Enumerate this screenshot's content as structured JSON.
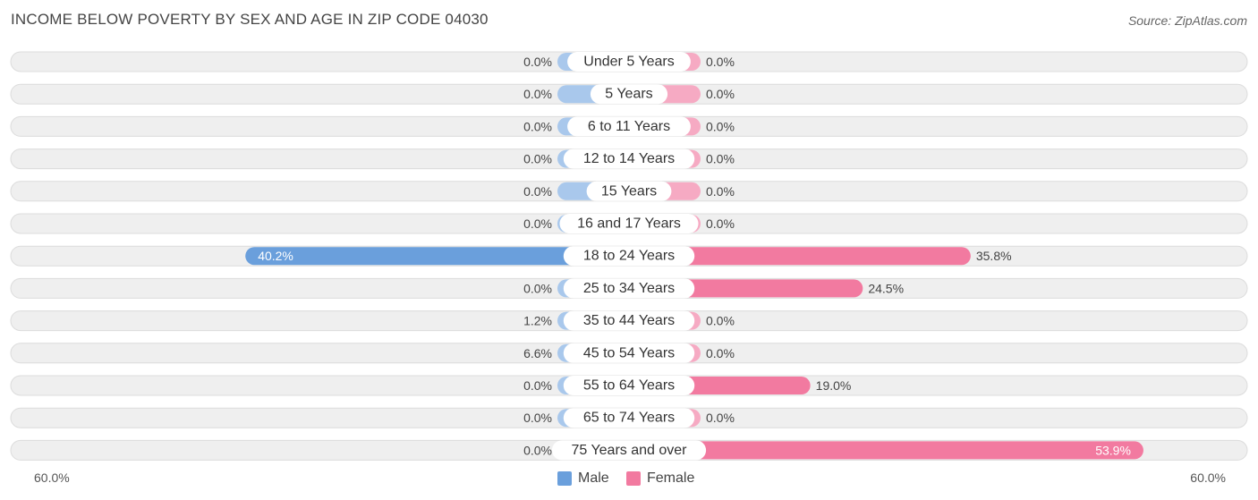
{
  "title": "INCOME BELOW POVERTY BY SEX AND AGE IN ZIP CODE 04030",
  "source": "Source: ZipAtlas.com",
  "colors": {
    "male": "#6a9fdc",
    "male_light": "#a9c8ec",
    "female": "#f27aa0",
    "female_light": "#f6aac3",
    "row_bg": "#efefef"
  },
  "chart_data": {
    "type": "bar",
    "orientation": "horizontal-diverging",
    "categories": [
      "Under 5 Years",
      "5 Years",
      "6 to 11 Years",
      "12 to 14 Years",
      "15 Years",
      "16 and 17 Years",
      "18 to 24 Years",
      "25 to 34 Years",
      "35 to 44 Years",
      "45 to 54 Years",
      "55 to 64 Years",
      "65 to 74 Years",
      "75 Years and over"
    ],
    "series": [
      {
        "name": "Male",
        "values": [
          0.0,
          0.0,
          0.0,
          0.0,
          0.0,
          0.0,
          40.2,
          0.0,
          1.2,
          6.6,
          0.0,
          0.0,
          0.0
        ]
      },
      {
        "name": "Female",
        "values": [
          0.0,
          0.0,
          0.0,
          0.0,
          0.0,
          0.0,
          35.8,
          24.5,
          0.0,
          0.0,
          19.0,
          0.0,
          53.9
        ]
      }
    ],
    "value_labels": {
      "male": [
        "0.0%",
        "0.0%",
        "0.0%",
        "0.0%",
        "0.0%",
        "0.0%",
        "40.2%",
        "0.0%",
        "1.2%",
        "6.6%",
        "0.0%",
        "0.0%",
        "0.0%"
      ],
      "female": [
        "0.0%",
        "0.0%",
        "0.0%",
        "0.0%",
        "0.0%",
        "0.0%",
        "35.8%",
        "24.5%",
        "0.0%",
        "0.0%",
        "19.0%",
        "0.0%",
        "53.9%"
      ]
    },
    "xlim": [
      -60,
      60
    ],
    "axis_left_label": "60.0%",
    "axis_right_label": "60.0%",
    "legend": [
      {
        "name": "Male",
        "color": "#6a9fdc"
      },
      {
        "name": "Female",
        "color": "#f27aa0"
      }
    ],
    "legend_position": "bottom-center"
  }
}
